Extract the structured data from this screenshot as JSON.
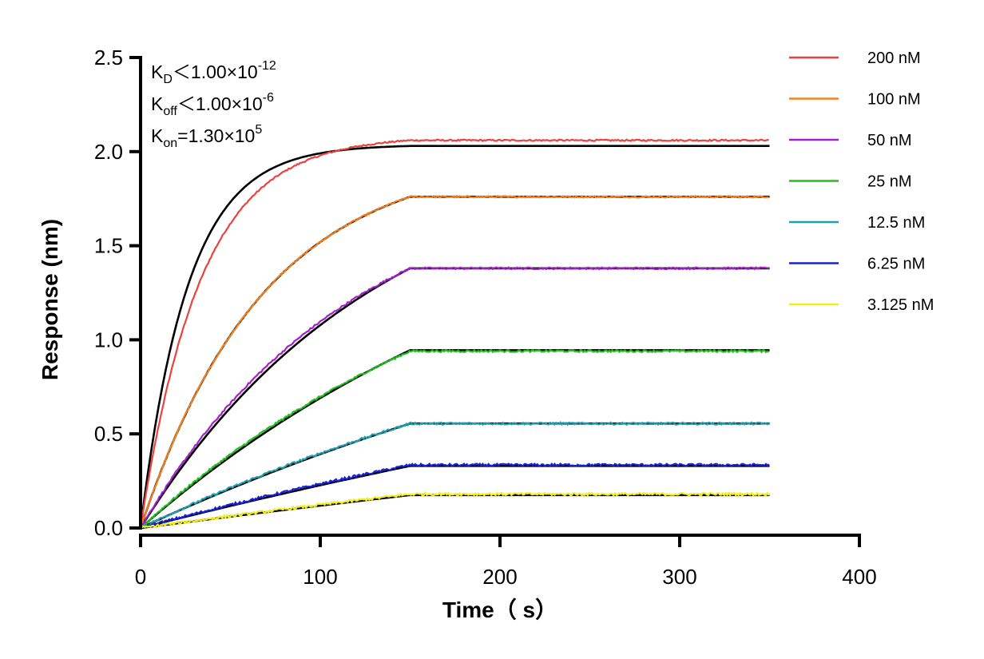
{
  "chart_data": {
    "type": "line",
    "title": "",
    "xlabel": "Time（ s）",
    "ylabel": "Response (nm)",
    "xlim": [
      0,
      400
    ],
    "ylim": [
      0,
      2.5
    ],
    "x_ticks": [
      "0",
      "100",
      "200",
      "300",
      "400"
    ],
    "y_ticks": [
      "0.0",
      "0.5",
      "1.0",
      "1.5",
      "2.0",
      "2.5"
    ],
    "x_tick_values": [
      0,
      100,
      200,
      300,
      400
    ],
    "y_tick_values": [
      0,
      0.5,
      1.0,
      1.5,
      2.0,
      2.5
    ],
    "association_end": 150,
    "data_end": 350,
    "legend_position": "right",
    "annotations": {
      "kd": {
        "base": "K",
        "sub": "D",
        "text": "＜1.00×10",
        "sup": "-12"
      },
      "koff": {
        "base": "K",
        "sub": "off",
        "text": "＜1.00×10",
        "sup": "-6"
      },
      "kon": {
        "base": "K",
        "sub": "on",
        "text": "=1.30×10",
        "sup": "5"
      }
    },
    "series": [
      {
        "name": "200 nM",
        "color": "#e8433f",
        "plateau": 2.06,
        "fit_plateau": 2.03,
        "k_obs": 0.03,
        "fit_k": 0.038
      },
      {
        "name": "100 nM",
        "color": "#f4821f",
        "plateau": 1.76,
        "fit_plateau": 1.76,
        "k_obs": 0.0145,
        "fit_k": 0.0145
      },
      {
        "name": "50 nM",
        "color": "#a320c9",
        "plateau": 1.38,
        "fit_plateau": 1.38,
        "k_obs": 0.0085,
        "fit_k": 0.0075
      },
      {
        "name": "25 nM",
        "color": "#1fbf1f",
        "plateau": 0.94,
        "fit_plateau": 0.945,
        "k_obs": 0.0048,
        "fit_k": 0.004
      },
      {
        "name": "12.5 nM",
        "color": "#1ea0b0",
        "plateau": 0.555,
        "fit_plateau": 0.555,
        "k_obs": 0.003,
        "fit_k": 0.0025
      },
      {
        "name": "6.25 nM",
        "color": "#1822d6",
        "plateau": 0.335,
        "fit_plateau": 0.33,
        "k_obs": 0.002,
        "fit_k": 0.0013
      },
      {
        "name": "3.125 nM",
        "color": "#f2ee1a",
        "plateau": 0.18,
        "fit_plateau": 0.175,
        "k_obs": 0.0012,
        "fit_k": 0.0008
      }
    ],
    "fit_color": "#000000"
  }
}
